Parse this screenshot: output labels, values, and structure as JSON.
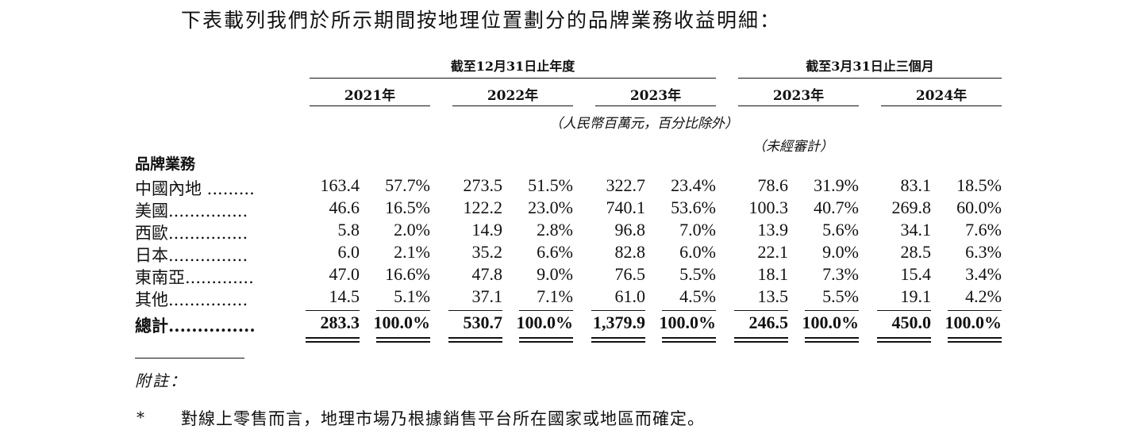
{
  "intro": "下表載列我們於所示期間按地理位置劃分的品牌業務收益明細：",
  "header": {
    "group_annual": "截至12月31日止年度",
    "group_quarter": "截至3月31日止三個月",
    "years": [
      "2021年",
      "2022年",
      "2023年",
      "2023年",
      "2024年"
    ],
    "unit_note": "（人民幣百萬元，百分比除外）",
    "unaudited_note": "（未經審計）"
  },
  "section_title": "品牌業務",
  "rows": [
    {
      "label": "中國內地 .........",
      "cells": [
        "163.4",
        "57.7%",
        "273.5",
        "51.5%",
        "322.7",
        "23.4%",
        "78.6",
        "31.9%",
        "83.1",
        "18.5%"
      ]
    },
    {
      "label": "美國...............",
      "cells": [
        "46.6",
        "16.5%",
        "122.2",
        "23.0%",
        "740.1",
        "53.6%",
        "100.3",
        "40.7%",
        "269.8",
        "60.0%"
      ]
    },
    {
      "label": "西歐...............",
      "cells": [
        "5.8",
        "2.0%",
        "14.9",
        "2.8%",
        "96.8",
        "7.0%",
        "13.9",
        "5.6%",
        "34.1",
        "7.6%"
      ]
    },
    {
      "label": "日本...............",
      "cells": [
        "6.0",
        "2.1%",
        "35.2",
        "6.6%",
        "82.8",
        "6.0%",
        "22.1",
        "9.0%",
        "28.5",
        "6.3%"
      ]
    },
    {
      "label": "東南亞.............",
      "cells": [
        "47.0",
        "16.6%",
        "47.8",
        "9.0%",
        "76.5",
        "5.5%",
        "18.1",
        "7.3%",
        "15.4",
        "3.4%"
      ]
    },
    {
      "label": "其他...............",
      "cells": [
        "14.5",
        "5.1%",
        "37.1",
        "7.1%",
        "61.0",
        "4.5%",
        "13.5",
        "5.5%",
        "19.1",
        "4.2%"
      ]
    }
  ],
  "total": {
    "label": "總計...............",
    "cells": [
      "283.3",
      "100.0%",
      "530.7",
      "100.0%",
      "1,379.9",
      "100.0%",
      "246.5",
      "100.0%",
      "450.0",
      "100.0%"
    ]
  },
  "footnote": {
    "label": "附註：",
    "marker": "*",
    "text": "對線上零售而言，地理市場乃根據銷售平台所在國家或地區而確定。"
  }
}
